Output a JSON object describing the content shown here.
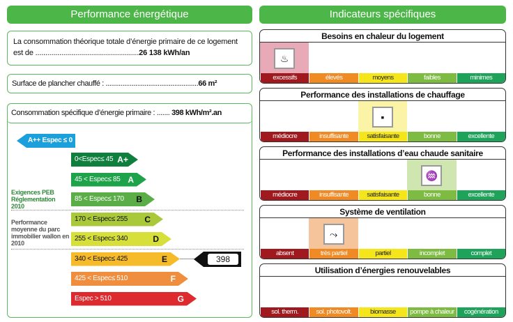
{
  "left": {
    "title": "Performance énergétique",
    "consumption_text": "La consommation théorique totale d’énergie primaire de ce logement est de ....................................................",
    "consumption_value": "26 138 kWh/an",
    "surface_text": "Surface de plancher chauffé : ..................................................",
    "surface_value": "66 m²",
    "specific_text": "Consommation spécifique d’énergie primaire : .......",
    "specific_value": "398 kWh/m².an",
    "side_label_1": "Exigences PEB Réglementation 2010",
    "side_label_2": "Performance moyenne du parc immobilier wallon en 2010",
    "marker_value": "398",
    "classes": [
      {
        "range": "A++ Espec ≤ 0",
        "letter": "",
        "color": "#1ca0dc"
      },
      {
        "range": "0<Espec≤ 45",
        "letter": "A+",
        "color": "#0e7f3c"
      },
      {
        "range": "45 < Espec≤ 85",
        "letter": "A",
        "color": "#1ea34a"
      },
      {
        "range": "85 < Espec≤ 170",
        "letter": "B",
        "color": "#5aad47"
      },
      {
        "range": "170 < Espec≤ 255",
        "letter": "C",
        "color": "#a9c93a"
      },
      {
        "range": "255 < Espec≤ 340",
        "letter": "D",
        "color": "#d7e03a"
      },
      {
        "range": "340 < Espec≤ 425",
        "letter": "E",
        "color": "#f6bb2b"
      },
      {
        "range": "425 < Espec≤ 510",
        "letter": "F",
        "color": "#ef8e3e"
      },
      {
        "range": "Espec > 510",
        "letter": "G",
        "color": "#dc2a2e"
      }
    ]
  },
  "right": {
    "title": "Indicateurs spécifiques",
    "panels": [
      {
        "title": "Besoins en chaleur du logement",
        "labels": [
          "excessifs",
          "élevés",
          "moyens",
          "faibles",
          "minimes"
        ],
        "selected": 0,
        "icon": "heat-house-icon"
      },
      {
        "title": "Performance des installations de chauffage",
        "labels": [
          "médiocre",
          "insuffisante",
          "satisfaisante",
          "bonne",
          "excellente"
        ],
        "selected": 2,
        "icon": "boiler-house-icon"
      },
      {
        "title": "Performance des installations d’eau chaude sanitaire",
        "labels": [
          "médiocre",
          "insuffisante",
          "satisfaisante",
          "bonne",
          "excellente"
        ],
        "selected": 3,
        "icon": "hot-water-house-icon"
      },
      {
        "title": "Système de ventilation",
        "labels": [
          "absent",
          "très partiel",
          "partiel",
          "incomplet",
          "complet"
        ],
        "selected": 1,
        "icon": "ventilation-icon"
      },
      {
        "title": "Utilisation d’énergies renouvelables",
        "labels": [
          "sol. therm.",
          "sol. photovolt.",
          "biomasse",
          "pompe à chaleur",
          "cogénération"
        ],
        "selected": -1,
        "icon": ""
      }
    ]
  },
  "colors": {
    "bars": [
      "#a0191e",
      "#f08a24",
      "#f4e61a",
      "#7dbb42",
      "#1fa35b"
    ],
    "highlights": [
      "#e8aab6",
      "#f6c49b",
      "#fbf3a5",
      "#cfe6b0",
      "#bfe3c9"
    ]
  }
}
